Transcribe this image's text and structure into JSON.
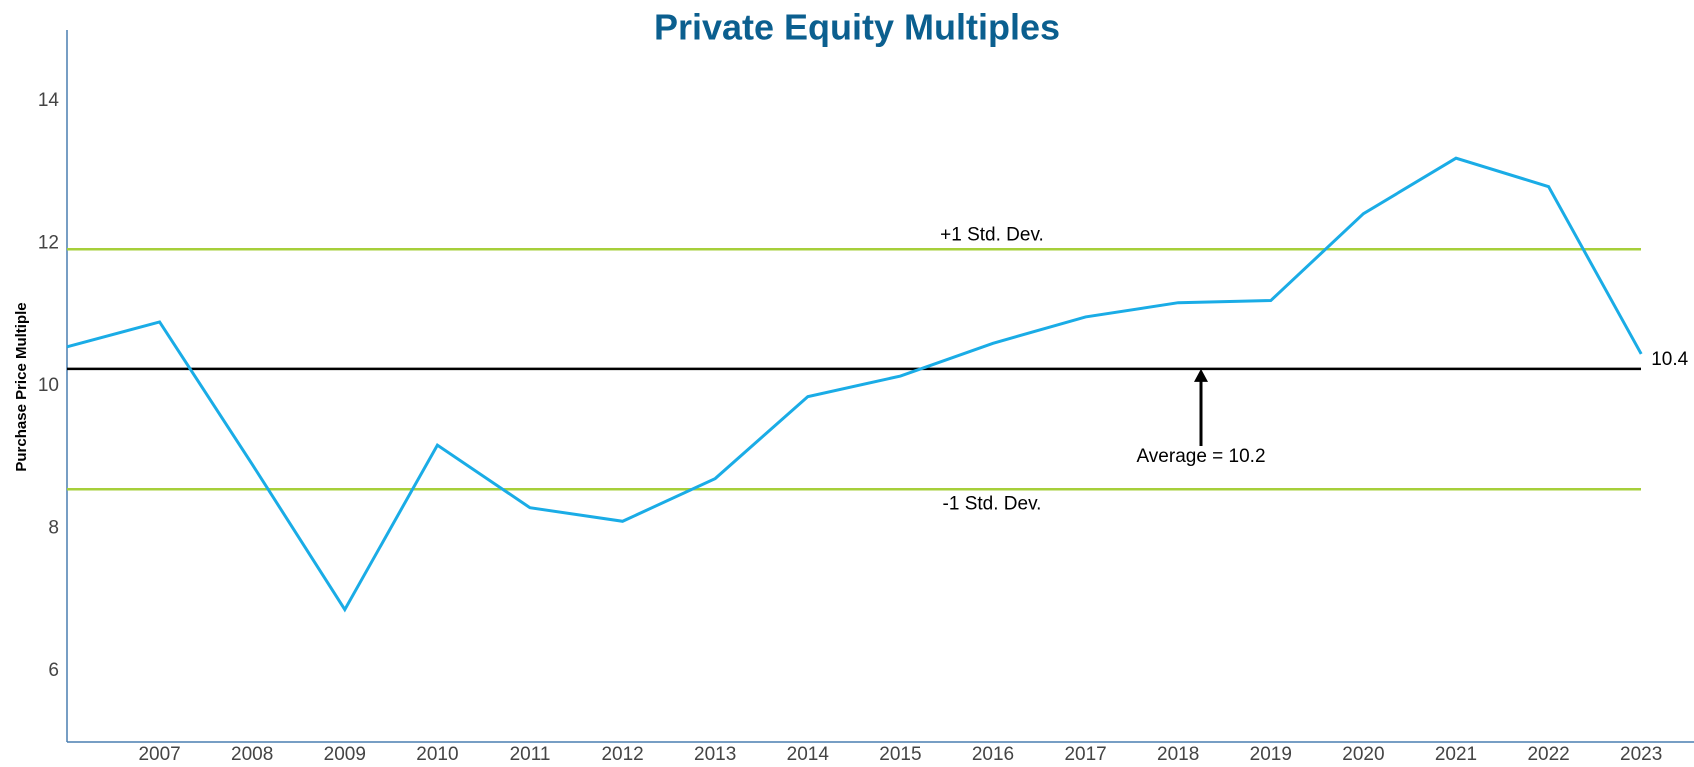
{
  "chart_data": {
    "type": "line",
    "title": "Private Equity Multiples",
    "y_label": "Purchase Price Multiple",
    "categories": [
      null,
      "2007",
      "2008",
      "2009",
      "2010",
      "2011",
      "2012",
      "2013",
      "2014",
      "2015",
      "2016",
      "2017",
      "2018",
      "2019",
      "2020",
      "2021",
      "2022",
      "2023"
    ],
    "series": [
      {
        "name": "Purchase Price Multiple",
        "color": "#1aace6",
        "values": [
          10.55,
          10.9,
          8.9,
          6.86,
          9.17,
          8.29,
          8.1,
          8.7,
          9.85,
          10.14,
          10.6,
          10.97,
          11.17,
          11.2,
          12.42,
          13.2,
          12.8,
          10.45
        ],
        "value_labels": [
          null,
          null,
          null,
          null,
          null,
          null,
          null,
          null,
          null,
          null,
          null,
          null,
          null,
          null,
          null,
          null,
          null,
          "10.4"
        ]
      }
    ],
    "reference_lines": [
      {
        "label": "+1 Std. Dev.",
        "value": 11.92,
        "color": "#a6cf3a"
      },
      {
        "label": "-1 Std. Dev.",
        "value": 8.55,
        "color": "#a6cf3a"
      },
      {
        "label": "Average =  10.2",
        "value": 10.24,
        "color": "#000000"
      }
    ],
    "ylim": [
      5,
      15
    ],
    "yticks": [
      6,
      8,
      10,
      12,
      14
    ],
    "grid": false
  }
}
